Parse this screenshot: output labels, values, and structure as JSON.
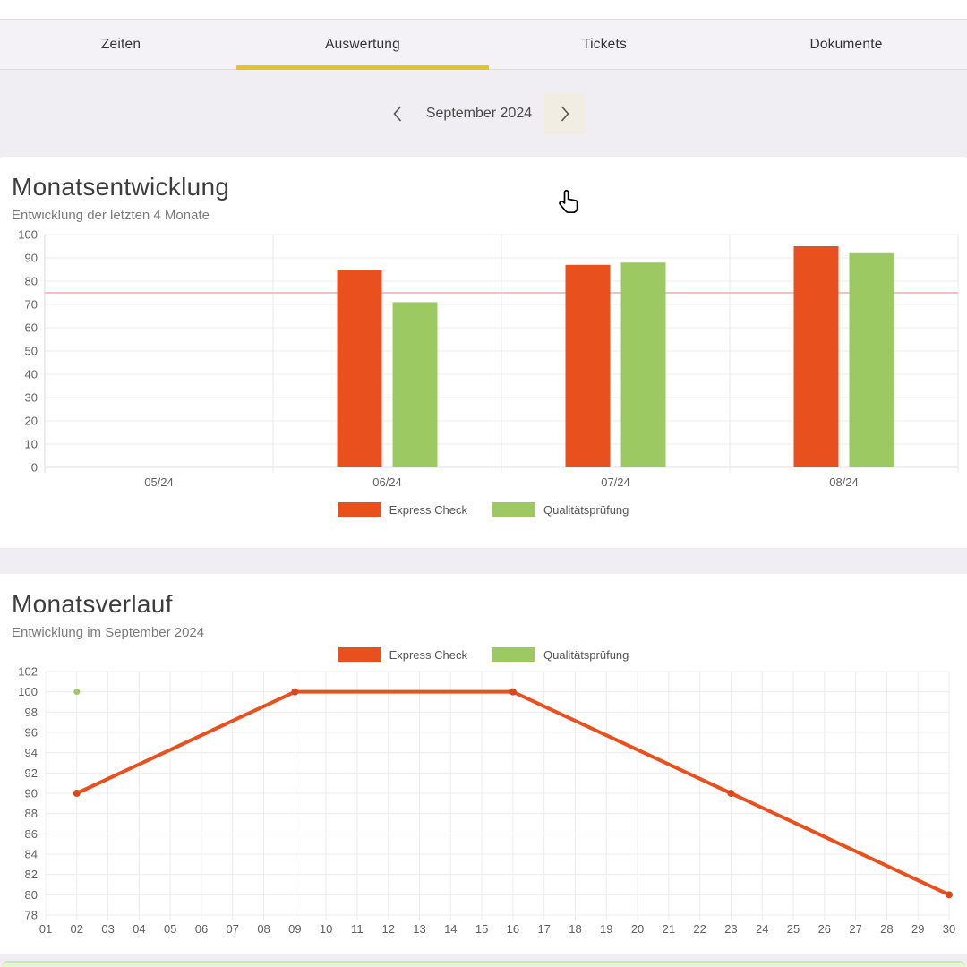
{
  "tabs": [
    {
      "label": "Zeiten",
      "active": false
    },
    {
      "label": "Auswertung",
      "active": true
    },
    {
      "label": "Tickets",
      "active": false
    },
    {
      "label": "Dokumente",
      "active": false
    }
  ],
  "month_nav": {
    "label": "September 2024",
    "prev_icon": "chevron-left",
    "next_icon": "chevron-right"
  },
  "colors": {
    "accent_yellow": "#e6c32a",
    "express": "#e8511d",
    "express_marker": "#d9481c",
    "qualitaet": "#9dc963",
    "threshold": "#f2abac",
    "bottom_panel_bg": "#e4f6d5",
    "bottom_panel_border": "#c9e8a8"
  },
  "chart_data": [
    {
      "type": "bar",
      "title": "Monatsentwicklung",
      "subtitle": "Entwicklung der letzten 4 Monate",
      "categories": [
        "05/24",
        "06/24",
        "07/24",
        "08/24"
      ],
      "series": [
        {
          "name": "Express Check",
          "color": "#e8511d",
          "values": [
            null,
            85,
            87,
            95
          ]
        },
        {
          "name": "Qualitätsprüfung",
          "color": "#9dc963",
          "values": [
            null,
            71,
            88,
            92
          ]
        }
      ],
      "ylim": [
        0,
        100
      ],
      "ytick_step": 10,
      "threshold": 75,
      "grid": true,
      "legend_position": "bottom"
    },
    {
      "type": "line",
      "title": "Monatsverlauf",
      "subtitle": "Entwicklung im September 2024",
      "x": [
        "01",
        "02",
        "03",
        "04",
        "05",
        "06",
        "07",
        "08",
        "09",
        "10",
        "11",
        "12",
        "13",
        "14",
        "15",
        "16",
        "17",
        "18",
        "19",
        "20",
        "21",
        "22",
        "23",
        "24",
        "25",
        "26",
        "27",
        "28",
        "29",
        "30"
      ],
      "series": [
        {
          "name": "Express Check",
          "color": "#e8511d",
          "marker_color": "#d9481c",
          "points": [
            {
              "day": "02",
              "value": 90
            },
            {
              "day": "09",
              "value": 100
            },
            {
              "day": "16",
              "value": 100
            },
            {
              "day": "23",
              "value": 90
            },
            {
              "day": "30",
              "value": 80
            }
          ]
        },
        {
          "name": "Qualitätsprüfung",
          "color": "#9dc963",
          "marker_color": "#9dc963",
          "points": [
            {
              "day": "02",
              "value": 100
            }
          ]
        }
      ],
      "ylim": [
        78,
        102
      ],
      "ytick_step": 2,
      "grid": true,
      "legend_position": "top"
    }
  ]
}
